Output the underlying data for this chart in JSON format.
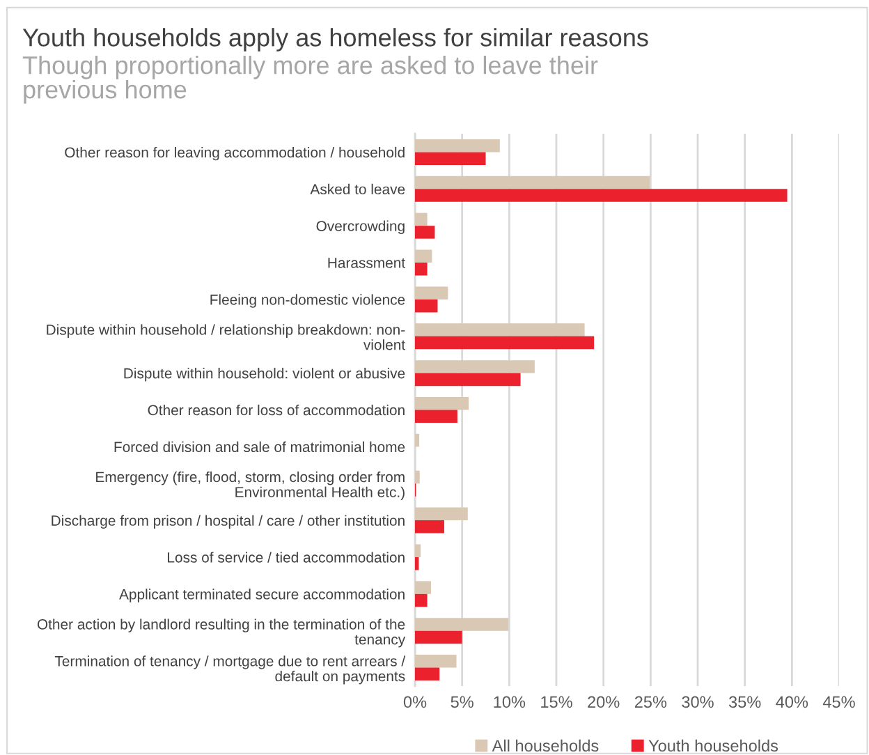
{
  "chart_data": {
    "type": "bar",
    "orientation": "horizontal",
    "title": "Youth households apply as homeless for similar reasons",
    "subtitle": "Though proportionally more are asked to leave their\nprevious home",
    "categories": [
      "Other reason for leaving accommodation / household",
      "Asked to leave",
      "Overcrowding",
      "Harassment",
      "Fleeing non-domestic violence",
      "Dispute within household / relationship breakdown: non-\nviolent",
      "Dispute within household: violent or abusive",
      "Other reason for loss of accommodation",
      "Forced division and sale of matrimonial home",
      "Emergency (fire, flood, storm, closing order from\nEnvironmental Health etc.)",
      "Discharge from prison / hospital / care / other institution",
      "Loss of service / tied accommodation",
      "Applicant terminated secure accommodation",
      "Other action by landlord resulting in the termination of the\ntenancy",
      "Termination of tenancy / mortgage due to rent arrears /\ndefault on payments"
    ],
    "series": [
      {
        "name": "All households",
        "color": "#d9c8b4",
        "values": [
          9.0,
          24.9,
          1.3,
          1.8,
          3.5,
          18.0,
          12.7,
          5.7,
          0.45,
          0.5,
          5.6,
          0.6,
          1.7,
          9.9,
          4.4
        ]
      },
      {
        "name": "Youth households",
        "color": "#ec212e",
        "values": [
          7.5,
          39.5,
          2.1,
          1.3,
          2.4,
          19.0,
          11.2,
          4.5,
          null,
          0.1,
          3.1,
          0.4,
          1.3,
          5.0,
          2.6
        ]
      }
    ],
    "xlim": [
      0,
      45
    ],
    "xticks": [
      {
        "value": 0,
        "label": "0%"
      },
      {
        "value": 5,
        "label": "5%"
      },
      {
        "value": 10,
        "label": "10%"
      },
      {
        "value": 15,
        "label": "15%"
      },
      {
        "value": 20,
        "label": "20%"
      },
      {
        "value": 25,
        "label": "25%"
      },
      {
        "value": 30,
        "label": "30%"
      },
      {
        "value": 35,
        "label": "35%"
      },
      {
        "value": 40,
        "label": "40%"
      },
      {
        "value": 45,
        "label": "45%"
      }
    ],
    "grid": "x",
    "legend": "bottom"
  }
}
